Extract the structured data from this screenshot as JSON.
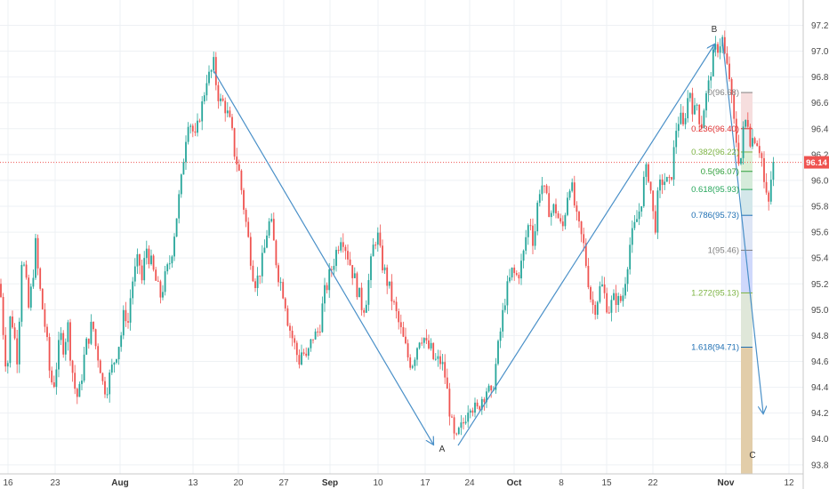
{
  "chart_data": {
    "type": "candlestick",
    "y_ticks": [
      "97.20",
      "97.00",
      "96.80",
      "96.60",
      "96.40",
      "96.20",
      "96.00",
      "95.80",
      "95.60",
      "95.40",
      "95.20",
      "95.00",
      "94.80",
      "94.60",
      "94.40",
      "94.20",
      "94.00",
      "93.80"
    ],
    "ylim": [
      93.73,
      97.32
    ],
    "x_ticks": [
      {
        "label": "16",
        "bold": false
      },
      {
        "label": "23",
        "bold": false
      },
      {
        "label": "Aug",
        "bold": true
      },
      {
        "label": "13",
        "bold": false
      },
      {
        "label": "20",
        "bold": false
      },
      {
        "label": "27",
        "bold": false
      },
      {
        "label": "Sep",
        "bold": true
      },
      {
        "label": "10",
        "bold": false
      },
      {
        "label": "17",
        "bold": false
      },
      {
        "label": "24",
        "bold": false
      },
      {
        "label": "Oct",
        "bold": true
      },
      {
        "label": "8",
        "bold": false
      },
      {
        "label": "15",
        "bold": false
      },
      {
        "label": "22",
        "bold": false
      },
      {
        "label": "Nov",
        "bold": true
      },
      {
        "label": "12",
        "bold": false
      }
    ],
    "last_price": {
      "label": "96.14",
      "value": 96.14,
      "color": "#ef5350"
    },
    "colors": {
      "up": "#26a69a",
      "down": "#ef5350",
      "arrow": "#4a90c8"
    },
    "close_path": [
      [
        0,
        95.2
      ],
      [
        5,
        94.7
      ],
      [
        8,
        94.5
      ],
      [
        12,
        95.0
      ],
      [
        16,
        94.8
      ],
      [
        20,
        94.6
      ],
      [
        24,
        95.4
      ],
      [
        28,
        95.3
      ],
      [
        32,
        95.0
      ],
      [
        36,
        95.2
      ],
      [
        40,
        95.5
      ],
      [
        44,
        95.2
      ],
      [
        48,
        95.0
      ],
      [
        52,
        94.8
      ],
      [
        56,
        94.5
      ],
      [
        60,
        94.4
      ],
      [
        64,
        94.6
      ],
      [
        68,
        94.8
      ],
      [
        72,
        94.7
      ],
      [
        76,
        94.9
      ],
      [
        80,
        94.6
      ],
      [
        84,
        94.4
      ],
      [
        88,
        94.3
      ],
      [
        92,
        94.5
      ],
      [
        96,
        94.7
      ],
      [
        100,
        94.8
      ],
      [
        104,
        94.9
      ],
      [
        108,
        94.7
      ],
      [
        112,
        94.6
      ],
      [
        116,
        94.4
      ],
      [
        120,
        94.4
      ],
      [
        124,
        94.5
      ],
      [
        128,
        94.6
      ],
      [
        132,
        94.7
      ],
      [
        136,
        94.8
      ],
      [
        140,
        95.0
      ],
      [
        144,
        94.9
      ],
      [
        148,
        95.2
      ],
      [
        152,
        95.3
      ],
      [
        156,
        95.4
      ],
      [
        160,
        95.2
      ],
      [
        164,
        95.5
      ],
      [
        168,
        95.4
      ],
      [
        172,
        95.3
      ],
      [
        176,
        95.2
      ],
      [
        180,
        95.1
      ],
      [
        184,
        95.2
      ],
      [
        188,
        95.3
      ],
      [
        192,
        95.4
      ],
      [
        196,
        95.6
      ],
      [
        200,
        95.8
      ],
      [
        204,
        96.0
      ],
      [
        208,
        96.3
      ],
      [
        212,
        96.5
      ],
      [
        216,
        96.4
      ],
      [
        220,
        96.3
      ],
      [
        224,
        96.5
      ],
      [
        228,
        96.6
      ],
      [
        232,
        96.8
      ],
      [
        236,
        96.8
      ],
      [
        240,
        96.9
      ],
      [
        244,
        96.7
      ],
      [
        248,
        96.6
      ],
      [
        252,
        96.6
      ],
      [
        256,
        96.5
      ],
      [
        260,
        96.4
      ],
      [
        264,
        96.2
      ],
      [
        268,
        96.1
      ],
      [
        272,
        95.9
      ],
      [
        276,
        95.7
      ],
      [
        280,
        95.5
      ],
      [
        284,
        95.3
      ],
      [
        288,
        95.2
      ],
      [
        292,
        95.3
      ],
      [
        296,
        95.4
      ],
      [
        300,
        95.6
      ],
      [
        304,
        95.7
      ],
      [
        308,
        95.5
      ],
      [
        312,
        95.3
      ],
      [
        316,
        95.2
      ],
      [
        320,
        95.1
      ],
      [
        324,
        94.9
      ],
      [
        328,
        94.8
      ],
      [
        332,
        94.7
      ],
      [
        336,
        94.6
      ],
      [
        340,
        94.7
      ],
      [
        344,
        94.6
      ],
      [
        348,
        94.7
      ],
      [
        352,
        94.8
      ],
      [
        356,
        94.8
      ],
      [
        360,
        94.9
      ],
      [
        364,
        95.1
      ],
      [
        368,
        95.2
      ],
      [
        372,
        95.3
      ],
      [
        376,
        95.4
      ],
      [
        380,
        95.5
      ],
      [
        384,
        95.6
      ],
      [
        388,
        95.5
      ],
      [
        392,
        95.4
      ],
      [
        396,
        95.3
      ],
      [
        400,
        95.2
      ],
      [
        404,
        95.1
      ],
      [
        408,
        95.0
      ],
      [
        412,
        95.1
      ],
      [
        416,
        95.3
      ],
      [
        420,
        95.5
      ],
      [
        424,
        95.6
      ],
      [
        428,
        95.4
      ],
      [
        432,
        95.3
      ],
      [
        436,
        95.2
      ],
      [
        440,
        95.1
      ],
      [
        444,
        95.0
      ],
      [
        448,
        94.9
      ],
      [
        452,
        94.8
      ],
      [
        456,
        94.7
      ],
      [
        460,
        94.6
      ],
      [
        464,
        94.6
      ],
      [
        468,
        94.7
      ],
      [
        472,
        94.8
      ],
      [
        476,
        94.8
      ],
      [
        480,
        94.7
      ],
      [
        484,
        94.7
      ],
      [
        488,
        94.6
      ],
      [
        492,
        94.6
      ],
      [
        496,
        94.6
      ],
      [
        500,
        94.5
      ],
      [
        504,
        94.3
      ],
      [
        508,
        94.1
      ],
      [
        512,
        93.95
      ],
      [
        516,
        94.05
      ],
      [
        520,
        94.1
      ],
      [
        524,
        94.2
      ],
      [
        528,
        94.3
      ],
      [
        532,
        94.25
      ],
      [
        536,
        94.2
      ],
      [
        540,
        94.3
      ],
      [
        544,
        94.35
      ],
      [
        548,
        94.4
      ],
      [
        552,
        94.3
      ],
      [
        556,
        94.5
      ],
      [
        560,
        94.7
      ],
      [
        564,
        94.9
      ],
      [
        568,
        95.1
      ],
      [
        572,
        95.2
      ],
      [
        576,
        95.3
      ],
      [
        580,
        95.25
      ],
      [
        584,
        95.3
      ],
      [
        588,
        95.4
      ],
      [
        592,
        95.6
      ],
      [
        596,
        95.7
      ],
      [
        600,
        95.5
      ],
      [
        604,
        95.8
      ],
      [
        608,
        96.0
      ],
      [
        612,
        95.9
      ],
      [
        616,
        95.8
      ],
      [
        620,
        95.75
      ],
      [
        624,
        95.8
      ],
      [
        628,
        95.7
      ],
      [
        632,
        95.6
      ],
      [
        636,
        95.8
      ],
      [
        640,
        96.0
      ],
      [
        644,
        95.9
      ],
      [
        648,
        95.7
      ],
      [
        652,
        95.6
      ],
      [
        656,
        95.5
      ],
      [
        660,
        95.3
      ],
      [
        664,
        95.1
      ],
      [
        668,
        95.0
      ],
      [
        672,
        95.1
      ],
      [
        676,
        95.2
      ],
      [
        680,
        95.1
      ],
      [
        684,
        95.0
      ],
      [
        688,
        95.05
      ],
      [
        692,
        95.1
      ],
      [
        696,
        95.05
      ],
      [
        700,
        95.1
      ],
      [
        704,
        95.3
      ],
      [
        708,
        95.5
      ],
      [
        712,
        95.6
      ],
      [
        716,
        95.7
      ],
      [
        720,
        95.8
      ],
      [
        724,
        96.0
      ],
      [
        728,
        96.1
      ],
      [
        732,
        95.9
      ],
      [
        736,
        95.6
      ],
      [
        740,
        95.9
      ],
      [
        744,
        96.0
      ],
      [
        748,
        96.0
      ],
      [
        752,
        95.95
      ],
      [
        756,
        96.1
      ],
      [
        760,
        96.4
      ],
      [
        764,
        96.5
      ],
      [
        768,
        96.4
      ],
      [
        772,
        96.6
      ],
      [
        776,
        96.7
      ],
      [
        780,
        96.5
      ],
      [
        784,
        96.6
      ],
      [
        788,
        96.4
      ],
      [
        792,
        96.6
      ],
      [
        796,
        96.7
      ],
      [
        800,
        96.9
      ],
      [
        804,
        97.0
      ],
      [
        808,
        97.05
      ],
      [
        812,
        97.1
      ],
      [
        816,
        96.9
      ],
      [
        820,
        96.8
      ],
      [
        824,
        96.5
      ],
      [
        828,
        96.3
      ],
      [
        832,
        96.1
      ],
      [
        836,
        96.4
      ],
      [
        840,
        96.5
      ],
      [
        844,
        96.3
      ],
      [
        848,
        96.35
      ],
      [
        852,
        96.3
      ],
      [
        856,
        96.2
      ],
      [
        860,
        95.9
      ],
      [
        864,
        95.8
      ],
      [
        868,
        96.1
      ],
      [
        872,
        96.14
      ]
    ],
    "points": [
      {
        "label": "A",
        "x": 515,
        "value": 93.95
      },
      {
        "label": "B",
        "x": 812,
        "value": 97.1
      },
      {
        "label": "C",
        "x": 858,
        "value": 94.2
      }
    ],
    "fib_levels": [
      {
        "label": "0(96.68)",
        "value": 96.68,
        "color": "#808080",
        "fill": "#f6dede"
      },
      {
        "label": "0.236(96.40)",
        "value": 96.4,
        "color": "#e03030",
        "fill": "#e9eef0"
      },
      {
        "label": "0.382(96.22)",
        "value": 96.22,
        "color": "#7cb342",
        "fill": "#dcefd6"
      },
      {
        "label": "0.5(96.07)",
        "value": 96.07,
        "color": "#2e9e3a",
        "fill": "#d5ebda"
      },
      {
        "label": "0.618(95.93)",
        "value": 95.93,
        "color": "#26a65b",
        "fill": "#d3e7ea"
      },
      {
        "label": "0.786(95.73)",
        "value": 95.73,
        "color": "#1e6fb3",
        "fill": "#dde5f5"
      },
      {
        "label": "1(95.46)",
        "value": 95.46,
        "color": "#808080",
        "fill": "#cfd8fb"
      },
      {
        "label": "1.272(95.13)",
        "value": 95.13,
        "color": "#7cb342",
        "fill": "#dfe7d9"
      },
      {
        "label": "1.618(94.71)",
        "value": 94.71,
        "color": "#1e6fb3",
        "fill": "#e2cda9"
      }
    ]
  }
}
